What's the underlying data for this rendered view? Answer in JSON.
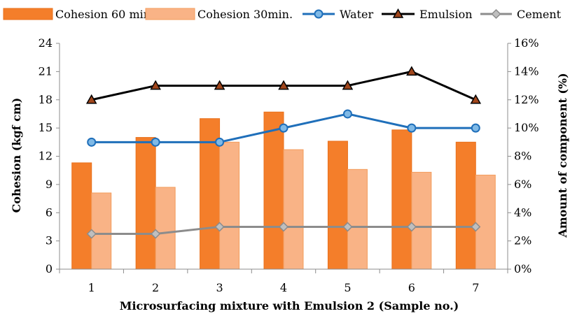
{
  "chart_data": {
    "type": "bar",
    "categories": [
      "1",
      "2",
      "3",
      "4",
      "5",
      "6",
      "7"
    ],
    "xlabel": "Microsurfacing mixture with Emulsion 2 (Sample no.)",
    "ylabel": "Cohesion (kgf cm)",
    "y2label": "Amount of component (%)",
    "ylim": [
      0,
      24
    ],
    "yticks": [
      "0",
      "3",
      "6",
      "9",
      "12",
      "15",
      "18",
      "21",
      "24"
    ],
    "y2lim": [
      0,
      16
    ],
    "y2ticks": [
      "0%",
      "2%",
      "4%",
      "6%",
      "8%",
      "10%",
      "12%",
      "14%",
      "16%"
    ],
    "grid": false,
    "legend_position": "top",
    "bar_series": [
      {
        "name": "Cohesion 60 min.",
        "axis": "left",
        "color": "#f47e2a",
        "values": [
          11.3,
          14.0,
          16.0,
          16.7,
          13.6,
          14.8,
          13.5
        ]
      },
      {
        "name": "Cohesion 30min.",
        "axis": "left",
        "color": "#f9b386",
        "values": [
          8.1,
          8.7,
          13.5,
          12.7,
          10.6,
          10.3,
          10.0
        ]
      }
    ],
    "line_series": [
      {
        "name": "Water",
        "axis": "right",
        "color": "#1f6fba",
        "marker": "circle",
        "marker_color": "#7fb9e6",
        "values": [
          9,
          9,
          9,
          10,
          11,
          10,
          10
        ]
      },
      {
        "name": "Emulsion",
        "axis": "right",
        "color": "#000000",
        "marker": "triangle",
        "marker_color": "#a0461c",
        "values": [
          12,
          13,
          13,
          13,
          13,
          14,
          12
        ]
      },
      {
        "name": "Cement",
        "axis": "right",
        "color": "#8c8c8c",
        "marker": "diamond",
        "marker_color": "#bfbfbf",
        "values": [
          2.5,
          2.5,
          3,
          3,
          3,
          3,
          3
        ]
      }
    ]
  }
}
